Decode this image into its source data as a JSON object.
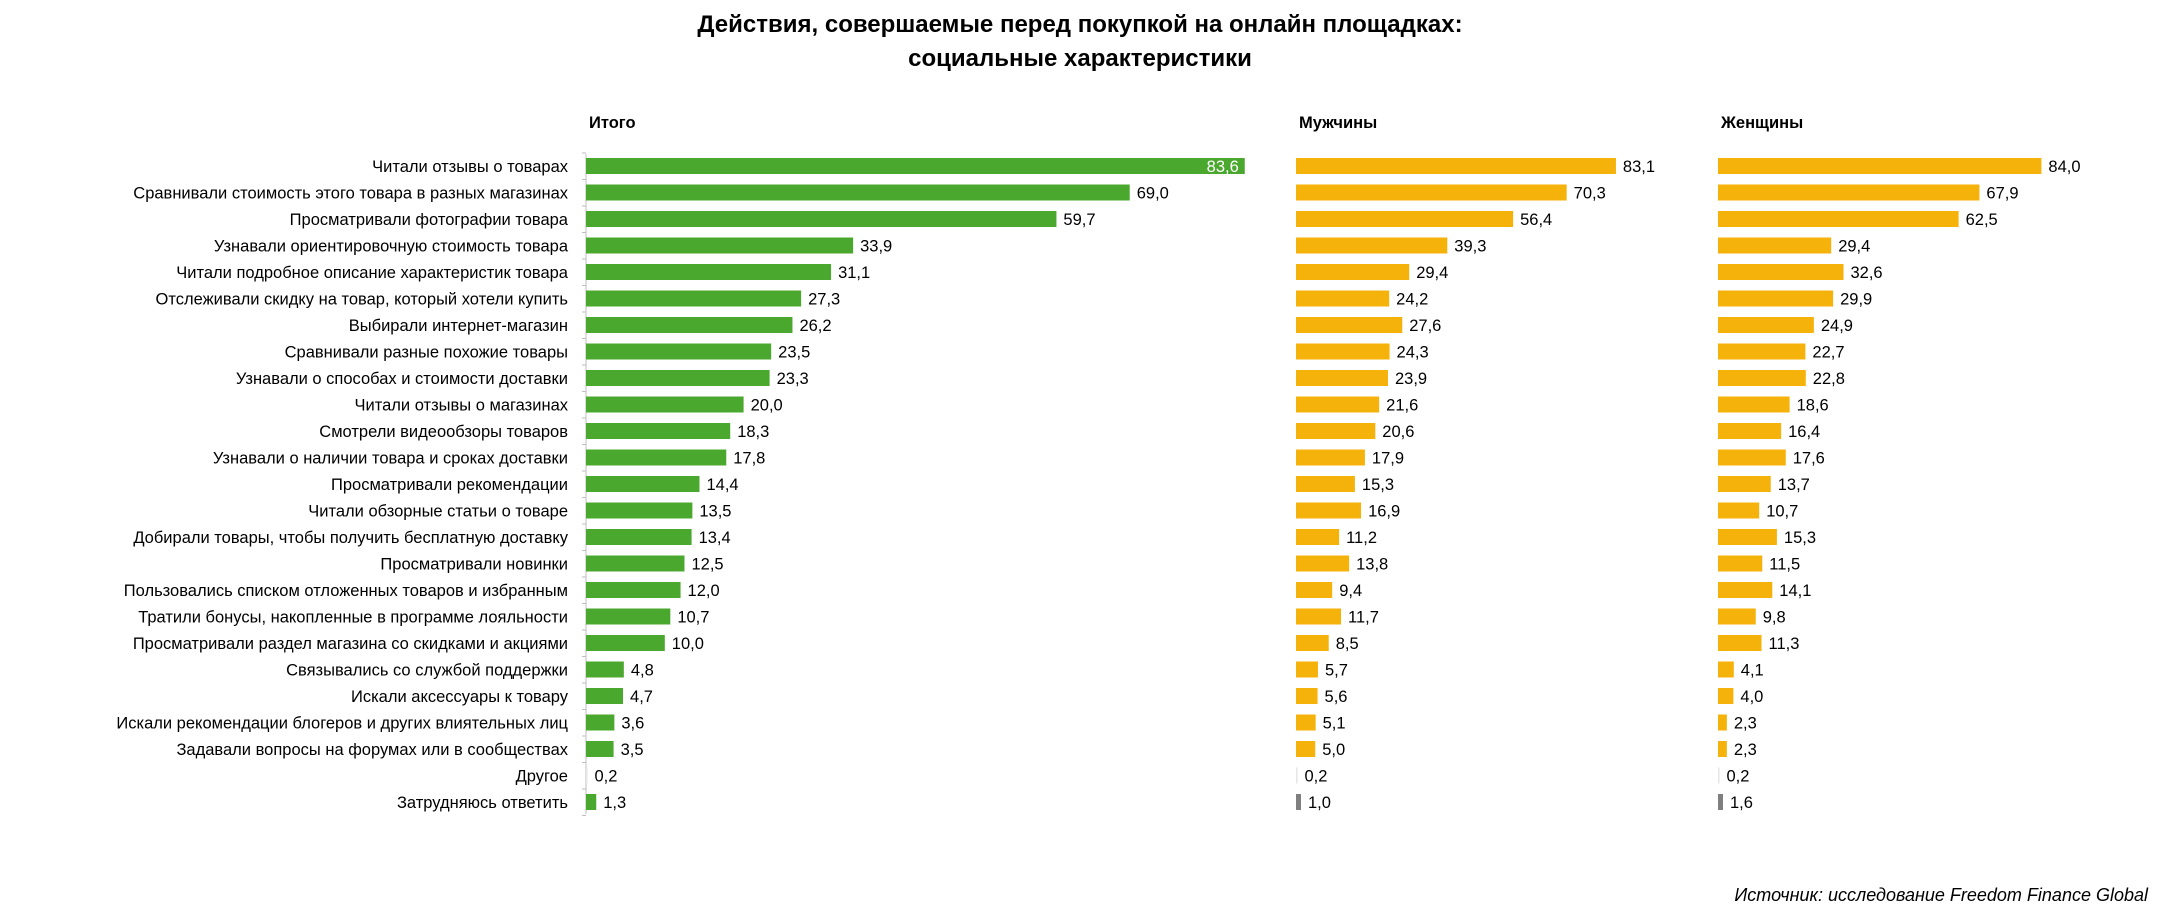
{
  "title": {
    "line1": "Действия, совершаемые перед покупкой на онлайн площадках:",
    "line2": "социальные характеристики"
  },
  "source": "Источник: исследование Freedom Finance Global",
  "colors": {
    "total": "#4ba82e",
    "male": "#f5b20a",
    "female": "#f5b20a",
    "small_bar": "#7f7f7f"
  },
  "chart_data": {
    "type": "bar",
    "orientation": "horizontal",
    "categories": [
      "Читали отзывы о товарах",
      "Сравнивали стоимость этого товара в разных магазинах",
      "Просматривали фотографии товара",
      "Узнавали ориентировочную стоимость товара",
      "Читали подробное описание характеристик товара",
      "Отслеживали скидку на товар, который хотели купить",
      "Выбирали интернет-магазин ",
      "Сравнивали разные похожие товары",
      "Узнавали о способах и стоимости доставки",
      "Читали отзывы о магазинах",
      "Смотрели видеообзоры товаров",
      "Узнавали о наличии товара и сроках доставки",
      "Просматривали рекомендации",
      "Читали обзорные статьи о товаре",
      "Добирали товары, чтобы получить бесплатную доставку",
      "Просматривали новинки",
      "Пользовались списком отложенных товаров и избранным",
      "Тратили бонусы, накопленные в программе лояльности",
      "Просматривали раздел магазина со скидками и акциями",
      "Связывались со службой поддержки",
      "Искали аксессуары к товару",
      "Искали рекомендации  блогеров и других влиятельных лиц",
      "Задавали вопросы на форумах или в сообществах",
      "Другое",
      "Затрудняюсь ответить"
    ],
    "series": [
      {
        "name": "Итого",
        "values": [
          83.6,
          69.0,
          59.7,
          33.9,
          31.1,
          27.3,
          26.2,
          23.5,
          23.3,
          20.0,
          18.3,
          17.8,
          14.4,
          13.5,
          13.4,
          12.5,
          12.0,
          10.7,
          10.0,
          4.8,
          4.7,
          3.6,
          3.5,
          0.2,
          1.3
        ],
        "labels": [
          "83,6",
          "69,0",
          "59,7",
          "33,9",
          "31,1",
          "27,3",
          "26,2",
          "23,5",
          "23,3",
          "20,0",
          "18,3",
          "17,8",
          "14,4",
          "13,5",
          "13,4",
          "12,5",
          "12,0",
          "10,7",
          "10,0",
          "4,8",
          "4,7",
          "3,6",
          "3,5",
          "0,2",
          "1,3"
        ]
      },
      {
        "name": "Мужчины",
        "values": [
          83.1,
          70.3,
          56.4,
          39.3,
          29.4,
          24.2,
          27.6,
          24.3,
          23.9,
          21.6,
          20.6,
          17.9,
          15.3,
          16.9,
          11.2,
          13.8,
          9.4,
          11.7,
          8.5,
          5.7,
          5.6,
          5.1,
          5.0,
          0.2,
          1.0
        ],
        "labels": [
          "83,1",
          "70,3",
          "56,4",
          "39,3",
          "29,4",
          "24,2",
          "27,6",
          "24,3",
          "23,9",
          "21,6",
          "20,6",
          "17,9",
          "15,3",
          "16,9",
          "11,2",
          "13,8",
          "9,4",
          "11,7",
          "8,5",
          "5,7",
          "5,6",
          "5,1",
          "5,0",
          "0,2",
          "1,0"
        ]
      },
      {
        "name": "Женщины",
        "values": [
          84.0,
          67.9,
          62.5,
          29.4,
          32.6,
          29.9,
          24.9,
          22.7,
          22.8,
          18.6,
          16.4,
          17.6,
          13.7,
          10.7,
          15.3,
          11.5,
          14.1,
          9.8,
          11.3,
          4.1,
          4.0,
          2.3,
          2.3,
          0.2,
          1.6
        ],
        "labels": [
          "84,0",
          "67,9",
          "62,5",
          "29,4",
          "32,6",
          "29,9",
          "24,9",
          "22,7",
          "22,8",
          "18,6",
          "16,4",
          "17,6",
          "13,7",
          "10,7",
          "15,3",
          "11,5",
          "14,1",
          "9,8",
          "11,3",
          "4,1",
          "4,0",
          "2,3",
          "2,3",
          "0,2",
          "1,6"
        ]
      }
    ],
    "unit": "%",
    "grid": false,
    "legend": "none"
  }
}
